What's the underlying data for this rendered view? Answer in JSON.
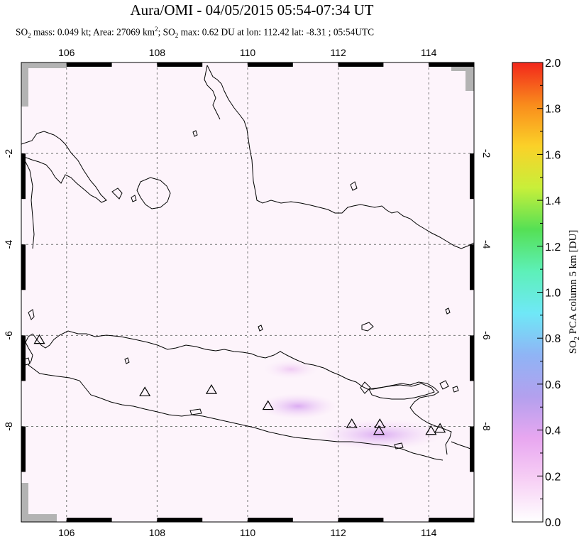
{
  "title": "Aura/OMI - 04/05/2015 05:54-07:34 UT",
  "subtitle": {
    "so2_mass_label": "SO",
    "so2_mass_value": " mass: 0.049 kt; Area: 27069 km",
    "area_exp": "2",
    "so2_max_label": "; SO",
    "so2_max_value": " max: 0.62 DU at lon: 112.42 lat: -8.31 ; 05:54UTC",
    "sub2": "2"
  },
  "map": {
    "lon_ticks": [
      "106",
      "108",
      "110",
      "112",
      "114"
    ],
    "lat_ticks": [
      "-2",
      "-4",
      "-6",
      "-8"
    ],
    "lon_range": [
      105,
      115
    ],
    "lat_range": [
      -10.1,
      0.0
    ],
    "colors": {
      "coast": "#000000",
      "grid": "#777777",
      "nodata": "#b3b3b3"
    },
    "volcanoes": [
      {
        "lon": 105.4,
        "lat": -6.1
      },
      {
        "lon": 107.73,
        "lat": -7.25
      },
      {
        "lon": 109.2,
        "lat": -7.2
      },
      {
        "lon": 110.45,
        "lat": -7.55
      },
      {
        "lon": 112.3,
        "lat": -7.95
      },
      {
        "lon": 112.92,
        "lat": -7.95
      },
      {
        "lon": 112.9,
        "lat": -8.1
      },
      {
        "lon": 114.05,
        "lat": -8.1
      },
      {
        "lon": 114.25,
        "lat": -8.05
      }
    ]
  },
  "colorbar": {
    "title_prefix": "SO",
    "title_sub": "2",
    "title_suffix": " PCA column 5 km [DU]",
    "ticks": [
      "0.0",
      "0.2",
      "0.4",
      "0.6",
      "0.8",
      "1.0",
      "1.2",
      "1.4",
      "1.6",
      "1.8",
      "2.0"
    ],
    "range": [
      0,
      2.0
    ],
    "gradient": [
      "#ffffff",
      "#f7d0f5",
      "#e8a7f0",
      "#b3a0ee",
      "#8fb4f5",
      "#6fe8f7",
      "#5df0b8",
      "#55e055",
      "#c8ef3a",
      "#fbd128",
      "#f98b1c",
      "#f2261b"
    ]
  }
}
